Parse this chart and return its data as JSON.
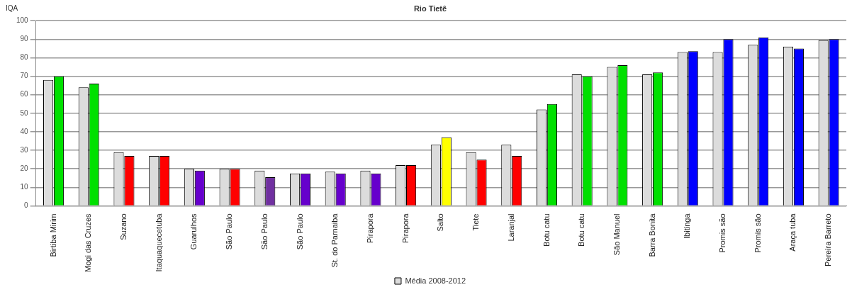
{
  "chart_data": {
    "type": "bar",
    "title": "Rio Tietê",
    "ylabel": "IQA",
    "categories": [
      "Birtiba Mirim",
      "Mogi das Cruzes",
      "Suzano",
      "Itaquaquecetuba",
      "Guarulhos",
      "São Paulo",
      "São Paulo",
      "São Paulo",
      "St. do Parnaiba",
      "Pirapora",
      "Pirapora",
      "Salto",
      "Tiete",
      "Laranjal",
      "Botu catu",
      "Botu catu",
      "São Manuel",
      "Barra Bonita",
      "Ibitinga",
      "Promis são",
      "Promis são",
      "Araça tuba",
      "Pereira Barreto"
    ],
    "series": [
      {
        "name": "Média 2008-2012",
        "color": "#dcdcdc",
        "values": [
          68,
          64,
          29,
          27,
          20,
          20,
          19,
          17.5,
          18.5,
          19,
          22,
          33,
          29,
          33,
          52,
          71,
          75,
          71,
          83,
          83,
          87,
          86,
          89.5
        ]
      },
      {
        "colors": [
          "#00e000",
          "#00e000",
          "#ff0000",
          "#ff0000",
          "#6600cc",
          "#ff0000",
          "#7030a0",
          "#6600cc",
          "#6600cc",
          "#6600cc",
          "#ff0000",
          "#ffff00",
          "#ff0000",
          "#ff0000",
          "#00e000",
          "#00e000",
          "#00e000",
          "#00e000",
          "#0000ff",
          "#0000ff",
          "#0000ff",
          "#0000ff",
          "#0000ff"
        ],
        "values": [
          70,
          66,
          27,
          27,
          19,
          20,
          15.5,
          17.5,
          17.5,
          17.5,
          22,
          37,
          25,
          27,
          55,
          70,
          76,
          72,
          83.5,
          90,
          91,
          85,
          90
        ]
      }
    ],
    "ylim": [
      0,
      100
    ],
    "yticks": [
      0,
      10,
      20,
      30,
      40,
      50,
      60,
      70,
      80,
      90,
      100
    ],
    "grid": "y",
    "legend": "bottom"
  }
}
